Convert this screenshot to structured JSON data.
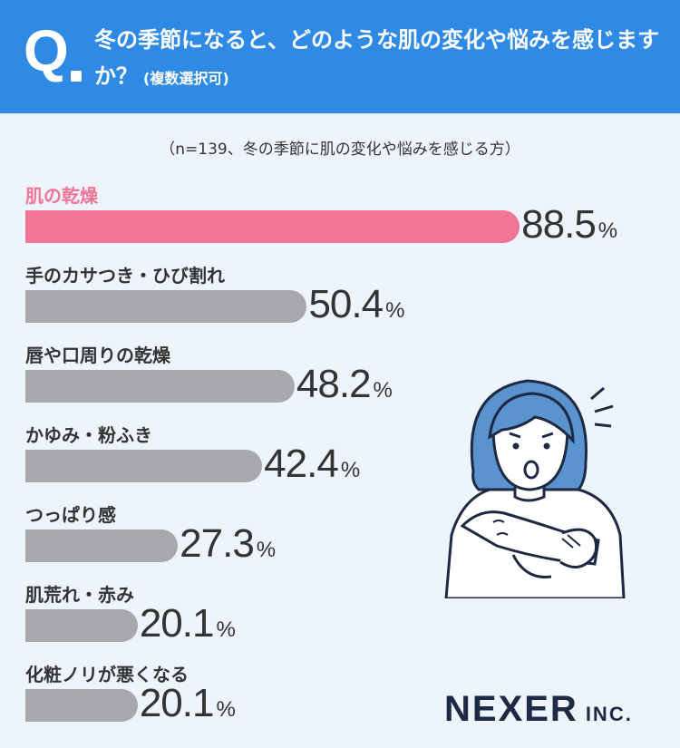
{
  "header": {
    "q_mark": "Q",
    "question": "冬の季節になると、どのような肌の変化や悩みを感じますか？",
    "note": "(複数選択可)"
  },
  "sample_note": "（n=139、冬の季節に肌の変化や悩みを感じる方）",
  "chart_data": {
    "type": "bar",
    "orientation": "horizontal",
    "title": "冬の季節になると、どのような肌の変化や悩みを感じますか？",
    "unit": "%",
    "categories": [
      "肌の乾燥",
      "手のカサつき・ひび割れ",
      "唇や口周りの乾燥",
      "かゆみ・粉ふき",
      "つっぱり感",
      "肌荒れ・赤み",
      "化粧ノリが悪くなる"
    ],
    "values": [
      88.5,
      50.4,
      48.2,
      42.4,
      27.3,
      20.1,
      20.1
    ],
    "value_labels": [
      "88.5",
      "50.4",
      "48.2",
      "42.4",
      "27.3",
      "20.1",
      "20.1"
    ],
    "highlight_index": 0,
    "colors": {
      "highlight": "#f07597",
      "default": "#a7a8ac",
      "highlight_label": "#f07597"
    },
    "xlim": [
      0,
      100
    ]
  },
  "logo": {
    "name": "NEXER",
    "suffix": "INC."
  },
  "colors": {
    "header_bg": "#2f8ae6",
    "page_bg": "#edf4fb"
  }
}
